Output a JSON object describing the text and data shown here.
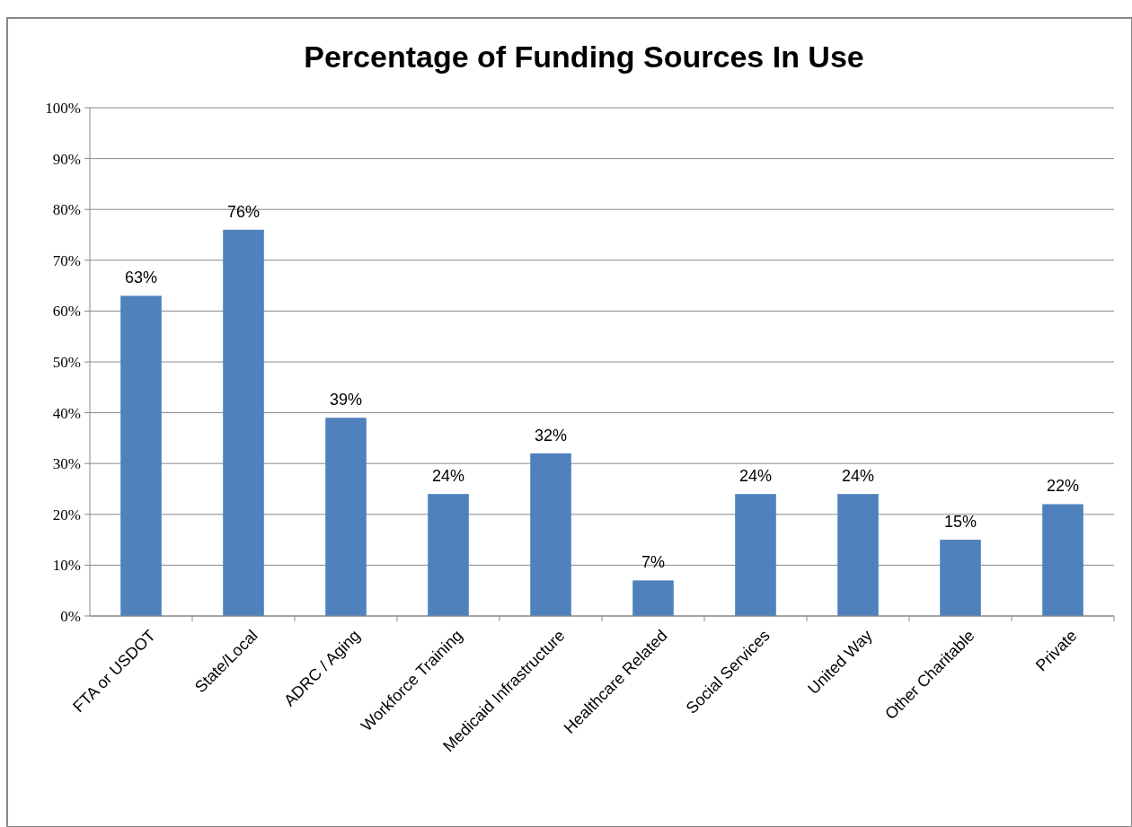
{
  "chart_data": {
    "type": "bar",
    "title": "Percentage of Funding Sources In Use",
    "categories": [
      "FTA or USDOT",
      "State/Local",
      "ADRC / Aging",
      "Workforce Training",
      "Medicaid Infrastructure",
      "Healthcare Related",
      "Social Services",
      "United Way",
      "Other Charitable",
      "Private"
    ],
    "values": [
      63,
      76,
      39,
      24,
      32,
      7,
      24,
      24,
      15,
      22
    ],
    "value_labels": [
      "63%",
      "76%",
      "39%",
      "24%",
      "32%",
      "7%",
      "24%",
      "24%",
      "15%",
      "22%"
    ],
    "color": "#4f81bd",
    "ylim": [
      0,
      100
    ],
    "yticks": [
      {
        "value": 0,
        "label": "0%"
      },
      {
        "value": 10,
        "label": "10%"
      },
      {
        "value": 20,
        "label": "20%"
      },
      {
        "value": 30,
        "label": "30%"
      },
      {
        "value": 40,
        "label": "40%"
      },
      {
        "value": 50,
        "label": "50%"
      },
      {
        "value": 60,
        "label": "60%"
      },
      {
        "value": 70,
        "label": "70%"
      },
      {
        "value": 80,
        "label": "80%"
      },
      {
        "value": 90,
        "label": "90%"
      },
      {
        "value": 100,
        "label": "100%"
      }
    ],
    "grid": "y"
  }
}
